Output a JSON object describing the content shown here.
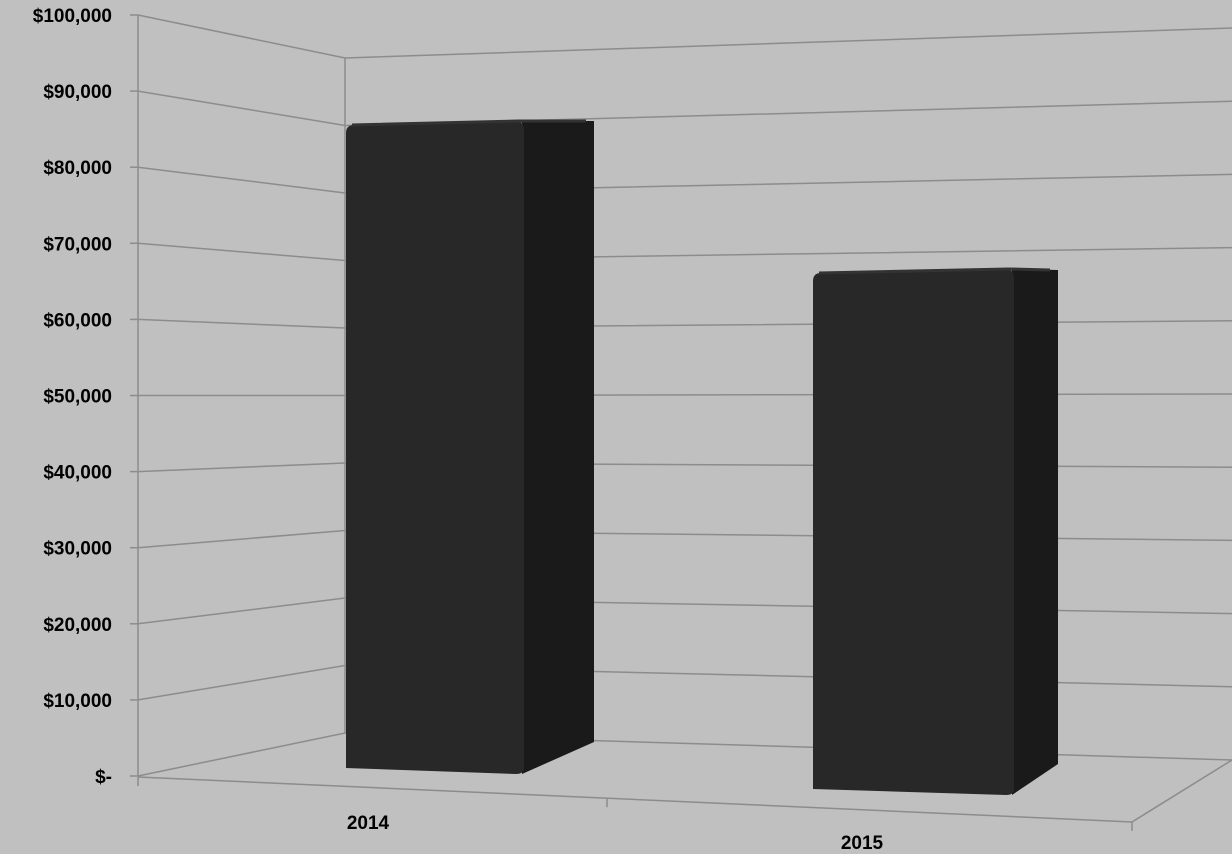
{
  "chart_data": {
    "type": "bar",
    "style": "3d-column",
    "categories": [
      "2014",
      "2015"
    ],
    "values": [
      92000,
      74000
    ],
    "ylim": [
      0,
      100000
    ],
    "yticks": [
      0,
      10000,
      20000,
      30000,
      40000,
      50000,
      60000,
      70000,
      80000,
      90000,
      100000
    ],
    "ytick_labels": [
      "$-",
      "$10,000",
      "$20,000",
      "$30,000",
      "$40,000",
      "$50,000",
      "$60,000",
      "$70,000",
      "$80,000",
      "$90,000",
      "$100,000"
    ],
    "title": "",
    "xlabel": "",
    "ylabel": "",
    "grid": true,
    "legend": "none",
    "colors": {
      "background": "#c0c0c0",
      "bar_front": "#282828",
      "bar_side": "#1a1a1a",
      "bar_top": "#333333",
      "gridline": "#8c8c8c"
    }
  }
}
